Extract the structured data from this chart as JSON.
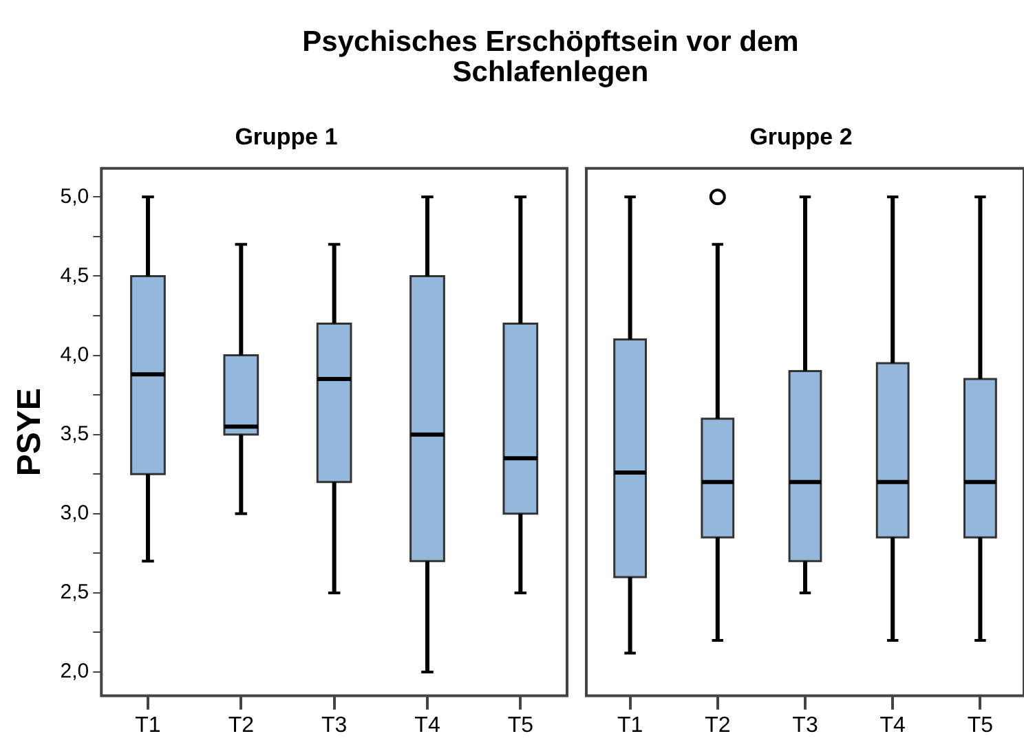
{
  "chart_data": [
    {
      "type": "box",
      "title": "Psychisches Erschöpftsein vor dem Schlafenlegen",
      "subtitle": "Gruppe 1",
      "ylabel": "PSYE",
      "categories": [
        "T1",
        "T2",
        "T3",
        "T4",
        "T5"
      ],
      "color": "#94b8db",
      "boxes": [
        {
          "low": 2.7,
          "q1": 3.25,
          "median": 3.88,
          "q3": 4.5,
          "high": 5.0
        },
        {
          "low": 3.0,
          "q1": 3.5,
          "median": 3.55,
          "q3": 4.0,
          "high": 4.7
        },
        {
          "low": 2.5,
          "q1": 3.2,
          "median": 3.85,
          "q3": 4.2,
          "high": 4.7
        },
        {
          "low": 2.0,
          "q1": 2.7,
          "median": 3.5,
          "q3": 4.5,
          "high": 5.0
        },
        {
          "low": 2.5,
          "q1": 3.0,
          "median": 3.35,
          "q3": 4.2,
          "high": 5.0
        }
      ],
      "ylim": [
        1.85,
        5.18
      ],
      "yticks": [
        {
          "value": 2,
          "label": "2,0"
        },
        {
          "value": 2.25,
          "label": null
        },
        {
          "value": 2.5,
          "label": "2,5"
        },
        {
          "value": 2.75,
          "label": null
        },
        {
          "value": 3,
          "label": "3,0"
        },
        {
          "value": 3.25,
          "label": null
        },
        {
          "value": 3.5,
          "label": "3,5"
        },
        {
          "value": 3.75,
          "label": null
        },
        {
          "value": 4,
          "label": "4,0"
        },
        {
          "value": 4.25,
          "label": null
        },
        {
          "value": 4.5,
          "label": "4,5"
        },
        {
          "value": 4.75,
          "label": null
        },
        {
          "value": 5,
          "label": "5,0"
        }
      ]
    },
    {
      "type": "box",
      "subtitle": "Gruppe 2",
      "categories": [
        "T1",
        "T2",
        "T3",
        "T4",
        "T5"
      ],
      "color": "#94b8db",
      "boxes": [
        {
          "low": 2.12,
          "q1": 2.6,
          "median": 3.26,
          "q3": 4.1,
          "high": 5.0
        },
        {
          "low": 2.2,
          "q1": 2.85,
          "median": 3.2,
          "q3": 3.6,
          "high": 4.7,
          "outliers": [
            5.0
          ]
        },
        {
          "low": 2.5,
          "q1": 2.7,
          "median": 3.2,
          "q3": 3.9,
          "high": 5.0
        },
        {
          "low": 2.2,
          "q1": 2.85,
          "median": 3.2,
          "q3": 3.95,
          "high": 5.0
        },
        {
          "low": 2.2,
          "q1": 2.85,
          "median": 3.2,
          "q3": 3.85,
          "high": 5.0
        }
      ],
      "ylim": [
        1.85,
        5.18
      ],
      "tick_labels": "x"
    }
  ]
}
